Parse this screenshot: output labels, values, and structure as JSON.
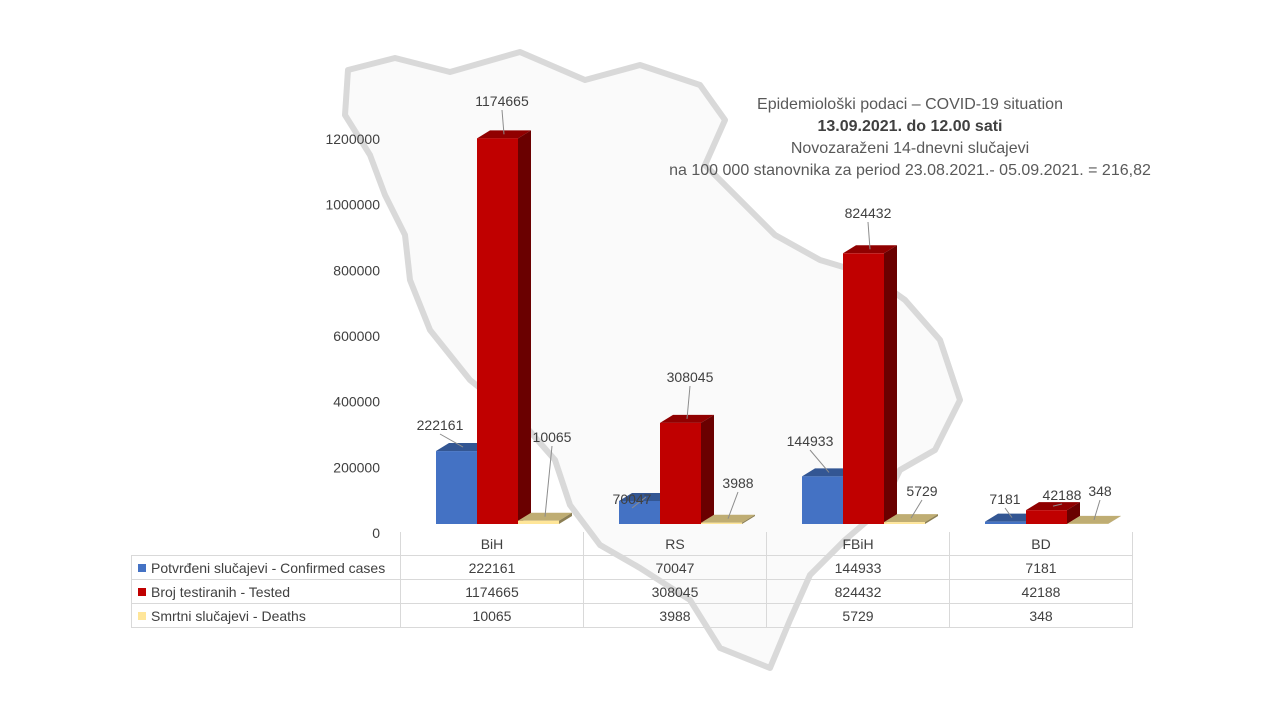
{
  "title": {
    "line1": "Epidemiološki podaci – COVID-19 situation",
    "line2": "13.09.2021. do 12.00 sati",
    "line3": "Novozaraženi 14-dnevni slučajevi",
    "line4": "na 100 000 stanovnika za period 23.08.2021.- 05.09.2021. = 216,82"
  },
  "colors": {
    "confirmed": "#4472c4",
    "tested": "#c00000",
    "deaths": "#ffe699"
  },
  "chart_data": {
    "type": "bar",
    "categories": [
      "BiH",
      "RS",
      "FBiH",
      "BD"
    ],
    "series": [
      {
        "name": "Potvrđeni slučajevi - Confirmed cases",
        "values": [
          222161,
          70047,
          144933,
          7181
        ]
      },
      {
        "name": "Broj testiranih - Tested",
        "values": [
          1174665,
          308045,
          824432,
          42188
        ]
      },
      {
        "name": "Smrtni slučajevi - Deaths",
        "values": [
          10065,
          3988,
          5729,
          348
        ]
      }
    ],
    "yticks": [
      "0",
      "200000",
      "400000",
      "600000",
      "800000",
      "1000000",
      "1200000"
    ],
    "ylim": [
      0,
      1200000
    ],
    "grid": false,
    "legend": "data-table"
  },
  "table": {
    "rows": [
      {
        "label": "Potvrđeni slučajevi - Confirmed cases",
        "values": [
          "222161",
          "70047",
          "144933",
          "7181"
        ]
      },
      {
        "label": "Broj testiranih - Tested",
        "values": [
          "1174665",
          "308045",
          "824432",
          "42188"
        ]
      },
      {
        "label": "Smrtni slučajevi - Deaths",
        "values": [
          "10065",
          "3988",
          "5729",
          "348"
        ]
      }
    ]
  }
}
